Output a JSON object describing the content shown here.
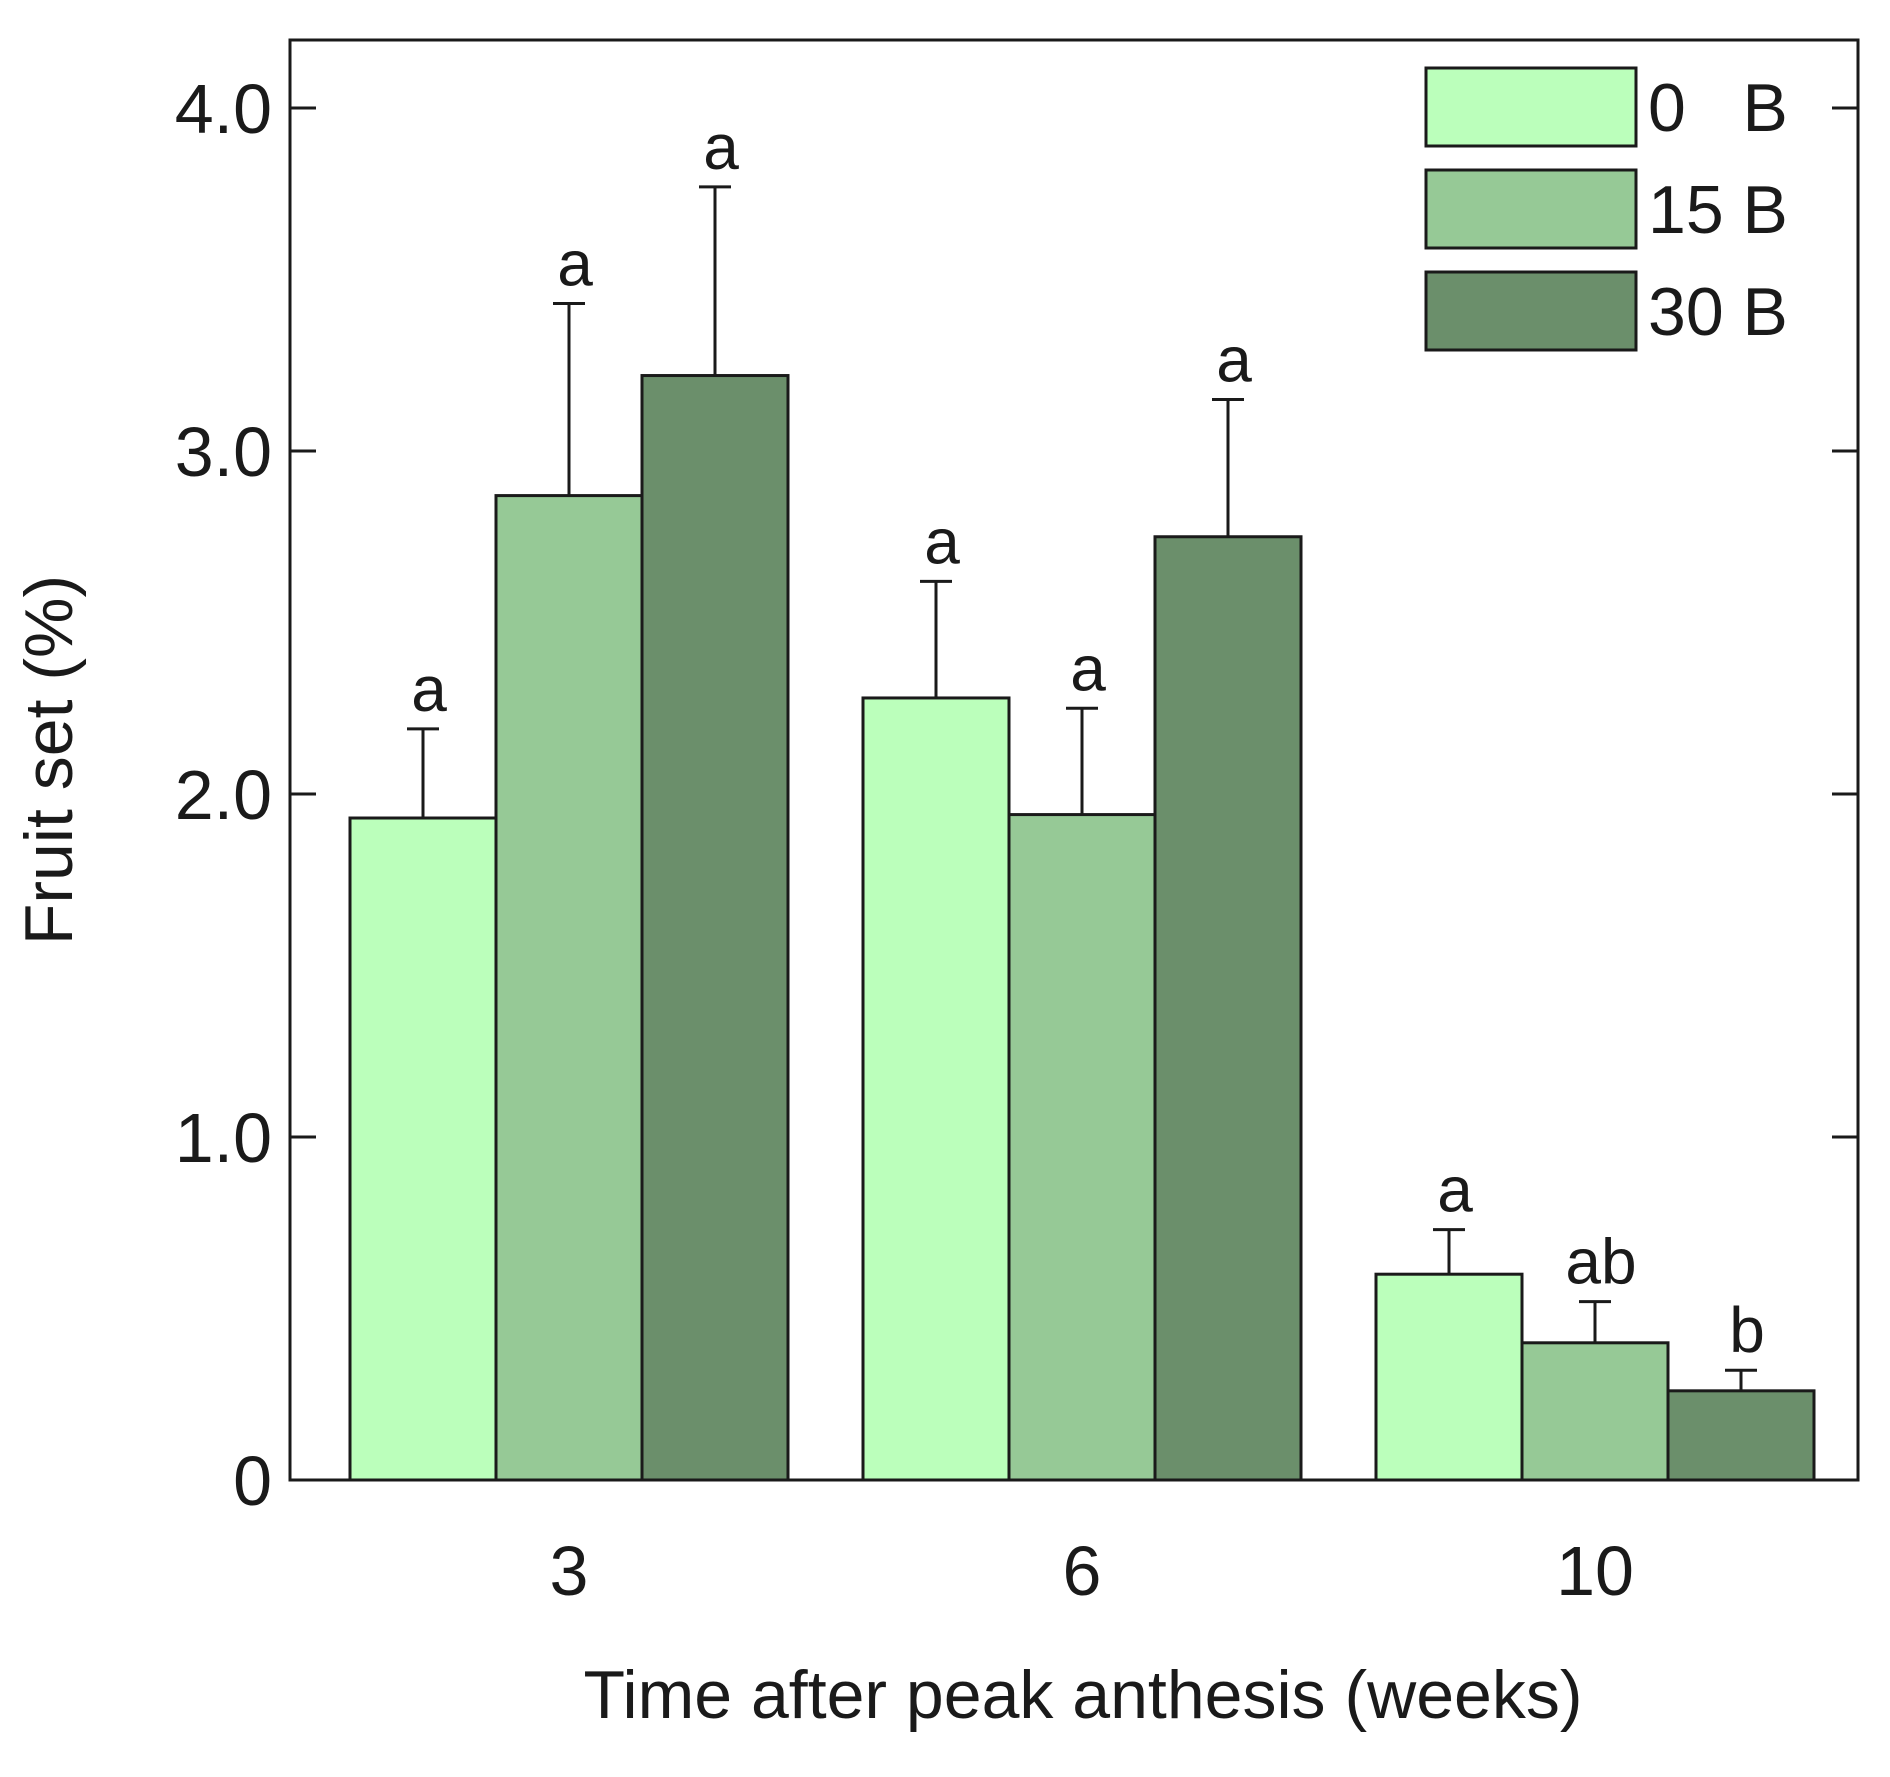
{
  "chart_data": {
    "type": "bar",
    "title": "",
    "xlabel": "Time after peak anthesis (weeks)",
    "ylabel": "Fruit set (%)",
    "categories": [
      "3",
      "6",
      "10"
    ],
    "ylim": [
      0,
      4.2
    ],
    "yticks": [
      {
        "value": 0,
        "label": "0"
      },
      {
        "value": 1,
        "label": "1.0"
      },
      {
        "value": 2,
        "label": "2.0"
      },
      {
        "value": 3,
        "label": "3.0"
      },
      {
        "value": 4,
        "label": "4.0"
      }
    ],
    "legend_position": "top-right",
    "series": [
      {
        "name": "0   B",
        "color": "#bbffbb",
        "values": [
          1.93,
          2.28,
          0.6
        ],
        "errors": [
          0.26,
          0.34,
          0.13
        ],
        "letters": [
          "a",
          "a",
          "a"
        ]
      },
      {
        "name": "15 B",
        "color": "#96c996",
        "values": [
          2.87,
          1.94,
          0.4
        ],
        "errors": [
          0.56,
          0.31,
          0.12
        ],
        "letters": [
          "a",
          "a",
          "ab"
        ]
      },
      {
        "name": "30 B",
        "color": "#6b8f6b",
        "values": [
          3.22,
          2.75,
          0.26
        ],
        "errors": [
          0.55,
          0.4,
          0.06
        ],
        "letters": [
          "a",
          "a",
          "b"
        ]
      }
    ]
  }
}
